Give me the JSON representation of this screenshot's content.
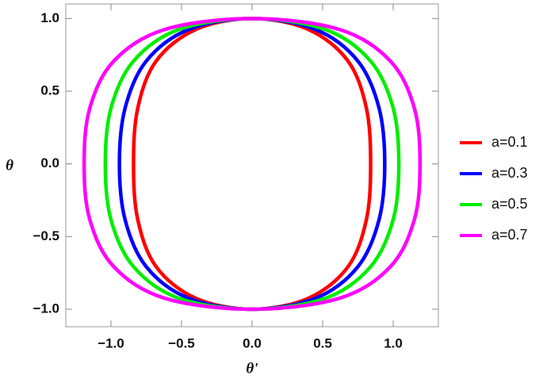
{
  "chart_data": {
    "type": "line",
    "x_label": "θ'",
    "y_label": "θ",
    "xlim": [
      -1.32,
      1.32
    ],
    "ylim": [
      -1.12,
      1.1
    ],
    "xticks": [
      {
        "value": -1,
        "label": "−1.0"
      },
      {
        "value": -0.5,
        "label": "−0.5"
      },
      {
        "value": 0,
        "label": "0.0"
      },
      {
        "value": 0.5,
        "label": "0.5"
      },
      {
        "value": 1,
        "label": "1.0"
      }
    ],
    "yticks": [
      {
        "value": -1,
        "label": "−1.0"
      },
      {
        "value": -0.5,
        "label": "−0.5"
      },
      {
        "value": 0,
        "label": "0.0"
      },
      {
        "value": 0.5,
        "label": "0.5"
      },
      {
        "value": 1,
        "label": "1.0"
      }
    ],
    "series": [
      {
        "name": "a=0.1",
        "color": "#ff0000",
        "x": [
          0.84,
          0.81,
          0.68,
          0.4,
          0,
          -0.4,
          -0.68,
          -0.81,
          -0.84,
          -0.81,
          -0.68,
          -0.4,
          0,
          0.4,
          0.68,
          0.81,
          0.84
        ],
        "values": [
          0,
          0.383,
          0.707,
          0.924,
          1,
          0.924,
          0.707,
          0.383,
          0,
          -0.383,
          -0.707,
          -0.924,
          -1,
          -0.924,
          -0.707,
          -0.383,
          0
        ]
      },
      {
        "name": "a=0.3",
        "color": "#0000ff",
        "x": [
          0.94,
          0.9,
          0.75,
          0.45,
          0,
          -0.45,
          -0.75,
          -0.9,
          -0.94,
          -0.9,
          -0.75,
          -0.45,
          0,
          0.45,
          0.75,
          0.9,
          0.94
        ],
        "values": [
          0,
          0.383,
          0.707,
          0.924,
          1,
          0.924,
          0.707,
          0.383,
          0,
          -0.383,
          -0.707,
          -0.924,
          -1,
          -0.924,
          -0.707,
          -0.383,
          0
        ]
      },
      {
        "name": "a=0.5",
        "color": "#00ee00",
        "x": [
          1.04,
          1.0,
          0.84,
          0.52,
          0,
          -0.52,
          -0.84,
          -1.0,
          -1.04,
          -1.0,
          -0.84,
          -0.52,
          0,
          0.52,
          0.84,
          1.0,
          1.04
        ],
        "values": [
          0,
          0.383,
          0.707,
          0.924,
          1,
          0.924,
          0.707,
          0.383,
          0,
          -0.383,
          -0.707,
          -0.924,
          -1,
          -0.924,
          -0.707,
          -0.383,
          0
        ]
      },
      {
        "name": "a=0.7",
        "color": "#ff00ff",
        "x": [
          1.19,
          1.15,
          0.98,
          0.62,
          0,
          -0.62,
          -0.98,
          -1.15,
          -1.19,
          -1.15,
          -0.98,
          -0.62,
          0,
          0.62,
          0.98,
          1.15,
          1.19
        ],
        "values": [
          0,
          0.383,
          0.707,
          0.924,
          1,
          0.924,
          0.707,
          0.383,
          0,
          -0.383,
          -0.707,
          -0.924,
          -1,
          -0.924,
          -0.707,
          -0.383,
          0
        ]
      }
    ]
  }
}
